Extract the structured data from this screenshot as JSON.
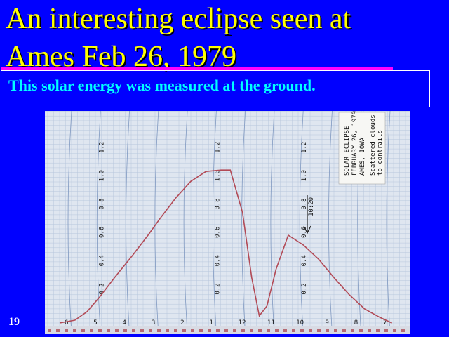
{
  "slide": {
    "title_line1": "An interesting eclipse seen at",
    "title_line2": "Ames  Feb 26, 1979",
    "subtitle": "This solar energy  was measured at the ground.",
    "slide_number": "19"
  },
  "chart_data": {
    "type": "line",
    "title": "",
    "xlabel": "",
    "ylabel": "",
    "ylim": [
      0,
      1.2
    ],
    "yticks": [
      "0.2",
      "0.4",
      "0.6",
      "0.8",
      "1.0",
      "1.2"
    ],
    "xtick_labels": [
      "6",
      "5",
      "4",
      "3",
      "2",
      "1",
      "12",
      "11",
      "10",
      "9",
      "8",
      "7"
    ],
    "x": [
      6.5,
      7.0,
      7.4,
      7.8,
      8.3,
      8.9,
      9.4,
      9.8,
      10.3,
      10.8,
      11.3,
      11.8,
      12.1,
      12.5,
      12.8,
      13.05,
      13.3,
      13.6,
      14.0,
      14.5,
      15.0,
      15.5,
      16.0,
      16.5,
      17.0,
      17.4
    ],
    "y": [
      0.0,
      0.02,
      0.08,
      0.18,
      0.32,
      0.48,
      0.62,
      0.74,
      0.88,
      1.0,
      1.07,
      1.08,
      1.08,
      0.78,
      0.32,
      0.05,
      0.12,
      0.38,
      0.62,
      0.55,
      0.45,
      0.32,
      0.2,
      0.1,
      0.04,
      0.0
    ],
    "annotations": {
      "label_card": [
        "SOLAR ECLIPSE",
        "FEBRUARY 26, 1979",
        "AMES, IOWA"
      ],
      "label_card_note": [
        "Scattered clouds due",
        "to contrails"
      ],
      "handwritten": "10:20"
    },
    "colors": {
      "trace": "#b24a56",
      "grid_major": "#7f98c0",
      "grid_minor": "#b7c6dc",
      "paper": "#dfe6f0"
    }
  }
}
